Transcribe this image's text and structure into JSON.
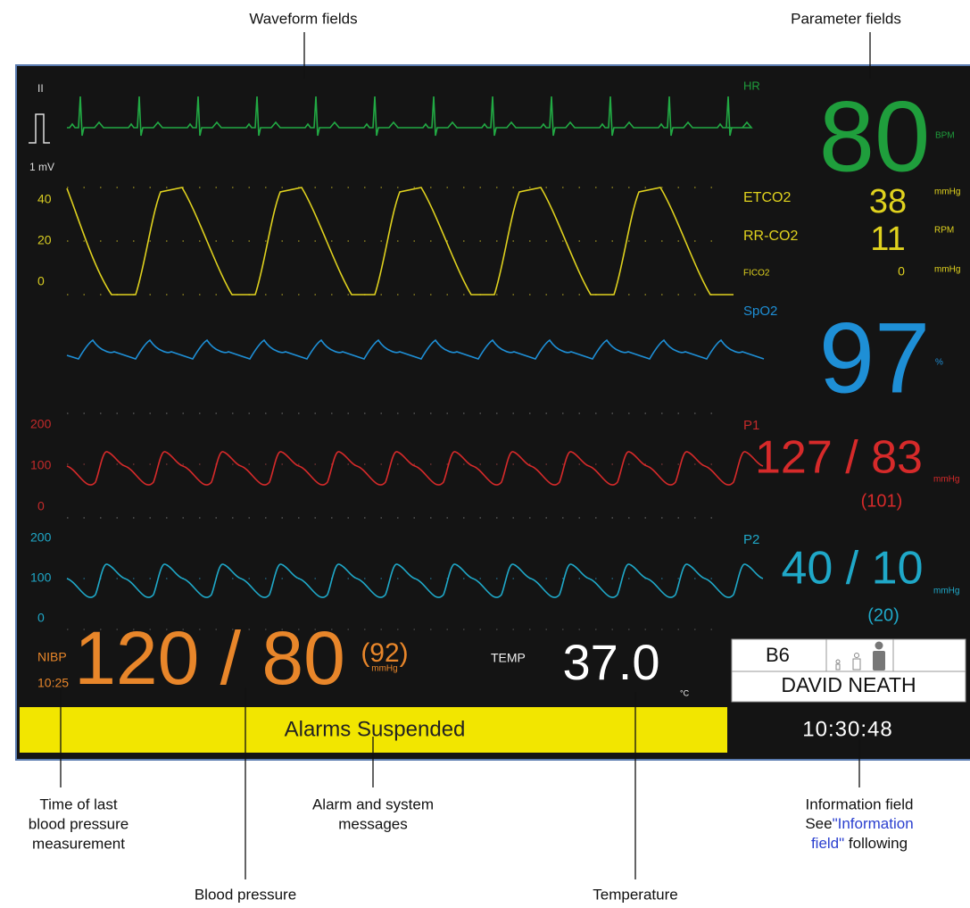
{
  "callouts": {
    "waveform_fields": "Waveform fields",
    "parameter_fields": "Parameter fields",
    "time_of_last_bp": [
      "Time of last",
      "blood pressure",
      "measurement"
    ],
    "blood_pressure": "Blood pressure",
    "alarm_messages": [
      "Alarm and system",
      "messages"
    ],
    "temperature": "Temperature",
    "information_field": {
      "title": "Information field",
      "see": "See",
      "link": [
        "\"Information",
        "field\""
      ],
      "following": " following"
    }
  },
  "waveforms": {
    "ecg": {
      "lead": "II",
      "scale": "1 mV"
    },
    "co2": {
      "scale": [
        "40",
        "20",
        "0"
      ]
    },
    "p1": {
      "scale": [
        "200",
        "100",
        "0"
      ]
    },
    "p2": {
      "scale": [
        "200",
        "100",
        "0"
      ]
    }
  },
  "parameters": {
    "hr": {
      "label": "HR",
      "value": "80",
      "unit": "BPM"
    },
    "etco2": {
      "label": "ETCO2",
      "value": "38",
      "unit": "mmHg"
    },
    "rrco2": {
      "label": "RR-CO2",
      "value": "11",
      "unit": "RPM"
    },
    "fico2": {
      "label": "FICO2",
      "value": "0",
      "unit": "mmHg"
    },
    "spo2": {
      "label": "SpO2",
      "value": "97",
      "unit": "%"
    },
    "p1": {
      "label": "P1",
      "value": "127 / 83",
      "unit": "mmHg",
      "mean": "(101)"
    },
    "p2": {
      "label": "P2",
      "value": "40 / 10",
      "unit": "mmHg",
      "mean": "(20)"
    }
  },
  "nibp": {
    "label": "NIBP",
    "time": "10:25",
    "value": "120 / 80",
    "mean": "(92)",
    "unit": "mmHg"
  },
  "temp": {
    "label": "TEMP",
    "value": "37.0",
    "unit": "°C"
  },
  "message": "Alarms Suspended",
  "info": {
    "bed": "B6",
    "patient": "DAVID NEATH",
    "time": "10:30:48"
  }
}
